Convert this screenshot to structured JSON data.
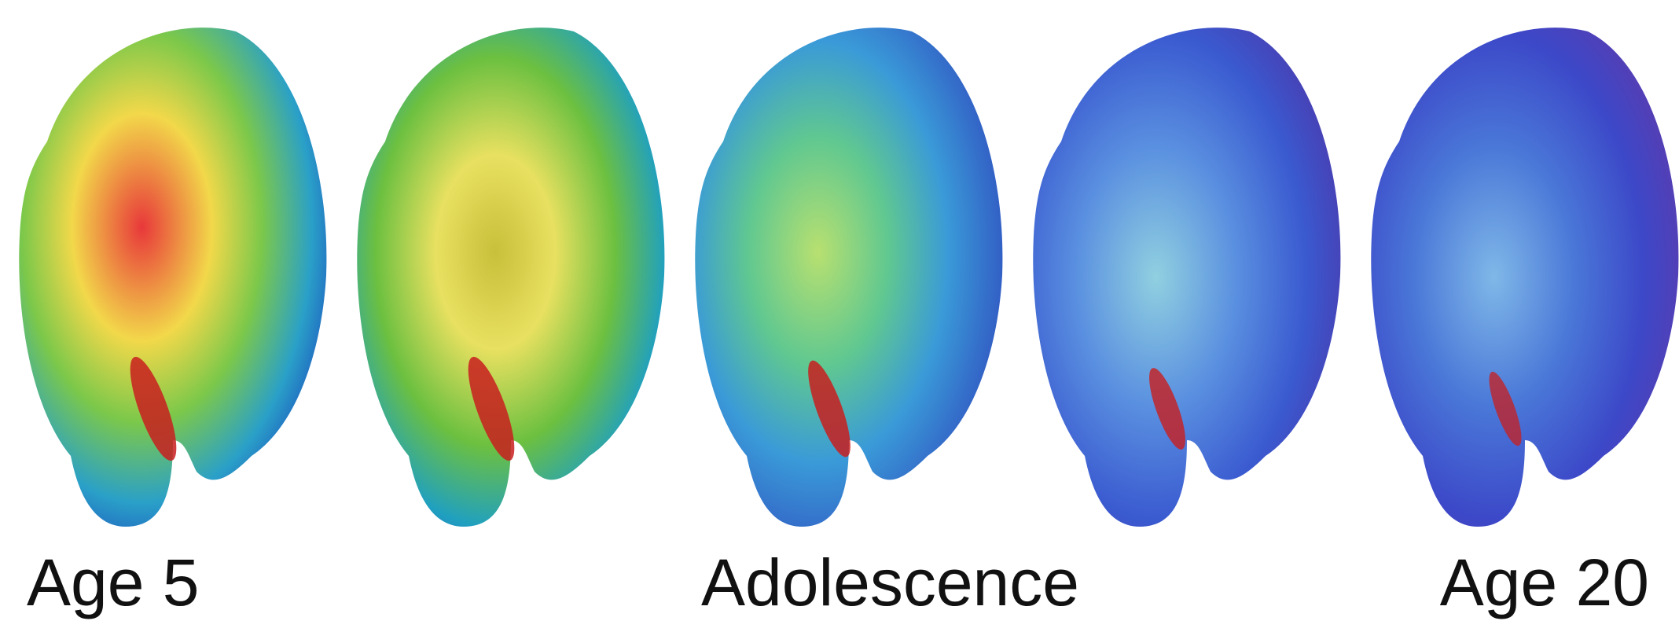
{
  "labels": {
    "start": "Age 5",
    "middle": "Adolescence",
    "end": "Age 20"
  }
}
